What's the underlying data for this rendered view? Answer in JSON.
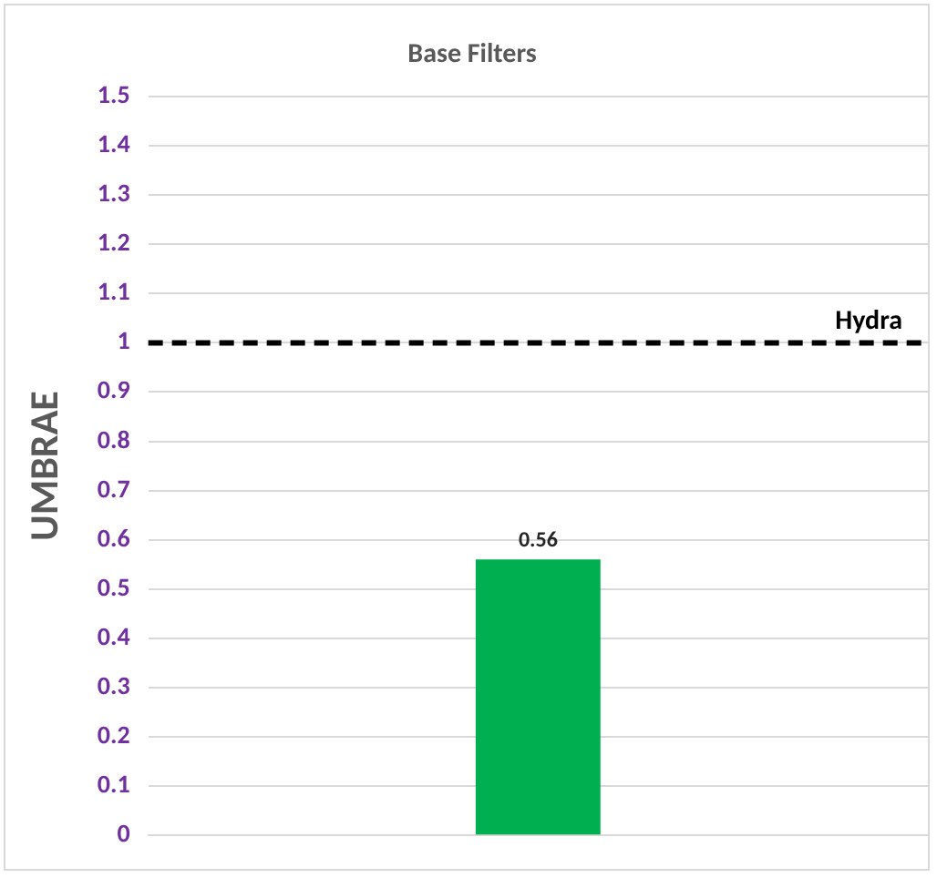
{
  "chart_data": {
    "type": "bar",
    "title": "Base Filters",
    "ylabel": "UMBRAE",
    "categories": [
      null
    ],
    "values": [
      0.56
    ],
    "color": "#00b050",
    "ylim": [
      0,
      1.5
    ],
    "yticks": [
      0,
      0.1,
      0.2,
      0.3,
      0.4,
      0.5,
      0.6,
      0.7,
      0.8,
      0.9,
      1,
      1.1,
      1.2,
      1.3,
      1.4,
      1.5
    ],
    "grid": "y",
    "data_labels": true,
    "ref_lines": [
      {
        "axis": "y",
        "value": 1,
        "label": "Hydra",
        "color": "#000000",
        "line_style": "dashed"
      }
    ]
  }
}
